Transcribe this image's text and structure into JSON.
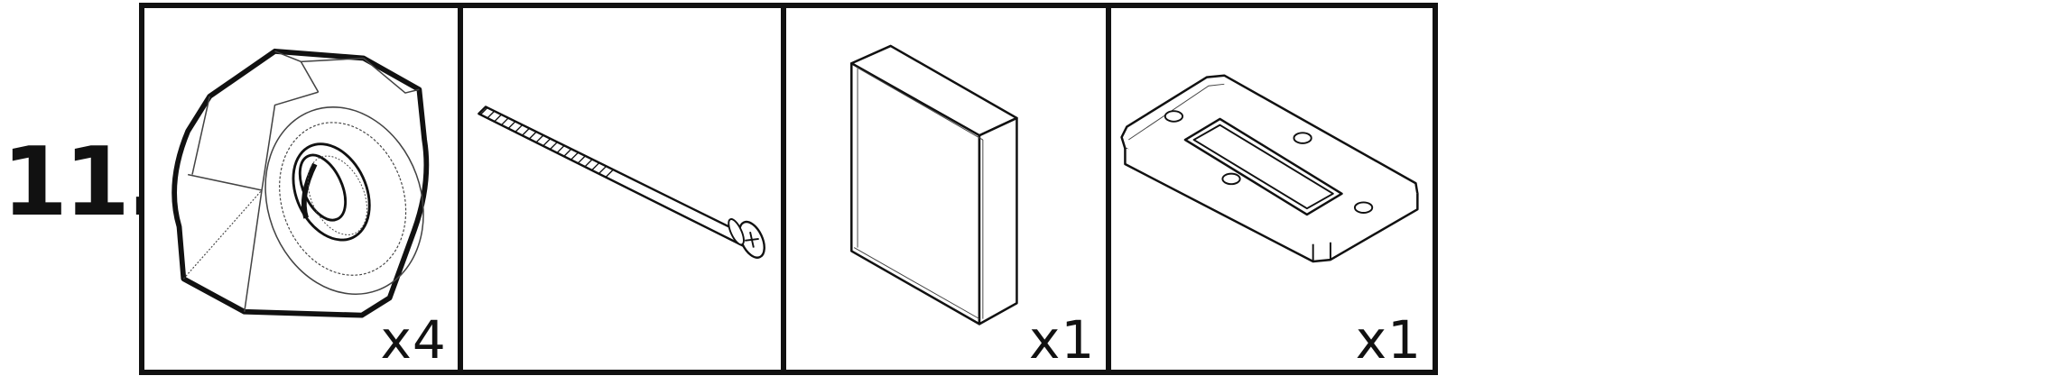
{
  "step": {
    "number": "11."
  },
  "panels": [
    {
      "part_icon": "hex-nut-icon",
      "quantity": "x4"
    },
    {
      "part_icon": "machine-screw-icon",
      "quantity": ""
    },
    {
      "part_icon": "rectangular-block-icon",
      "quantity": "x1"
    },
    {
      "part_icon": "mounting-plate-icon",
      "quantity": "x1"
    }
  ],
  "colors": {
    "ink": "#111111",
    "fine_line": "#444444",
    "background": "#ffffff"
  }
}
